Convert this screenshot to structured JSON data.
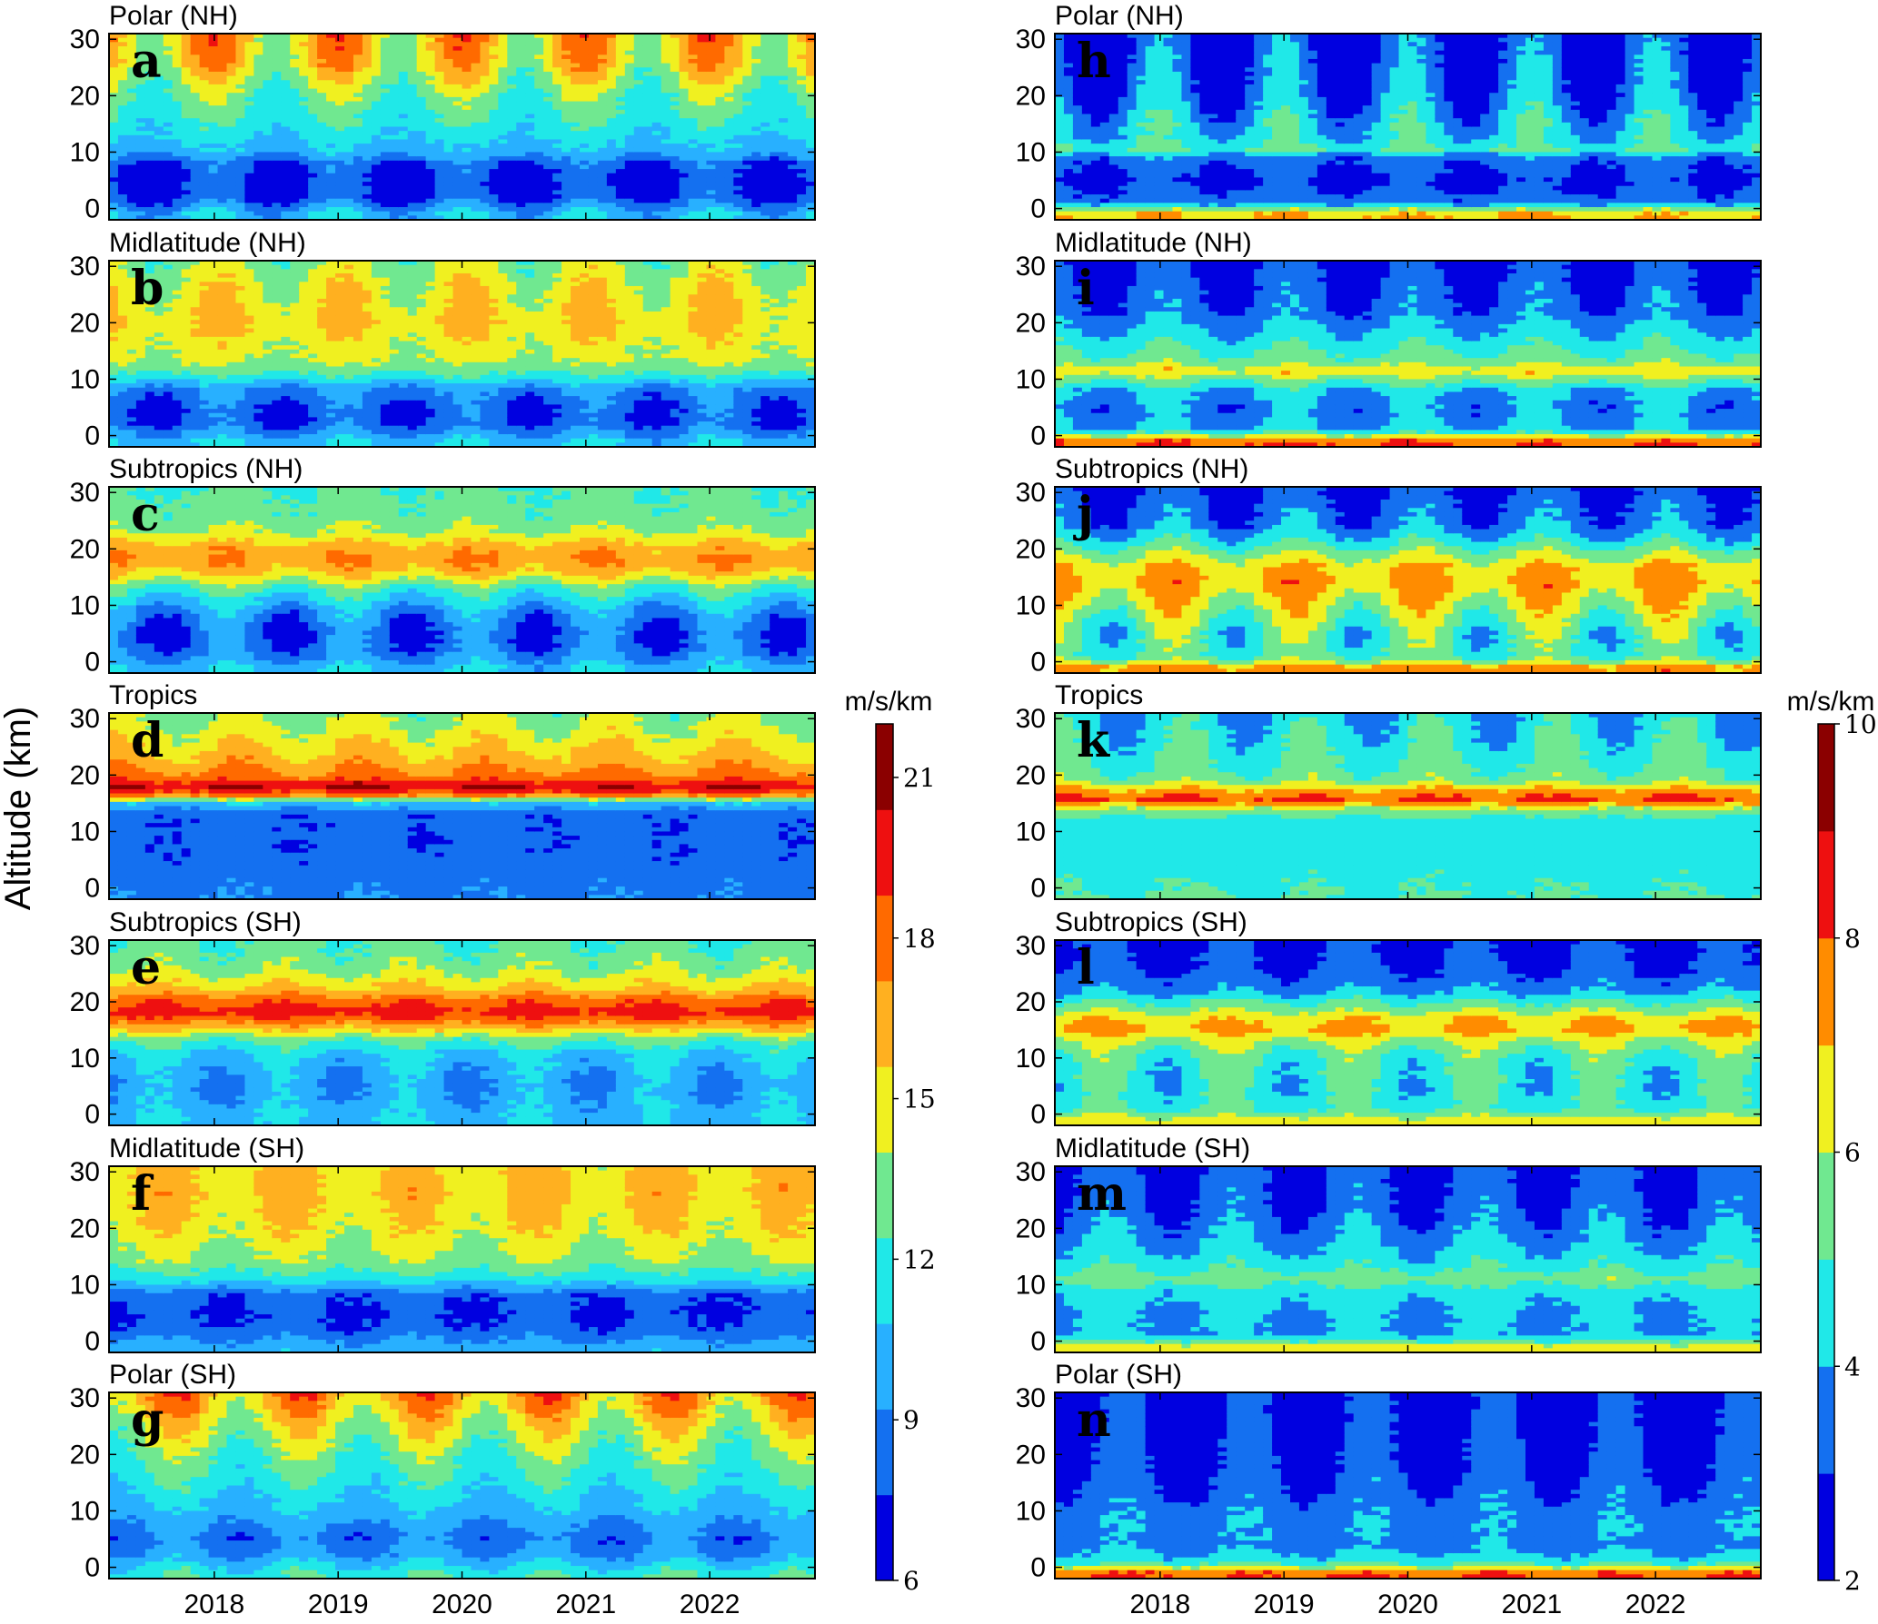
{
  "chart_data": {
    "type": "heatmap",
    "y_axis_label": "Altitude (km)",
    "x_ticks": [
      "2018",
      "2019",
      "2020",
      "2021",
      "2022"
    ],
    "x_tick_years": [
      2018,
      2019,
      2020,
      2021,
      2022
    ],
    "x_range": [
      2017.15,
      2022.85
    ],
    "y_ticks": [
      0,
      10,
      20,
      30
    ],
    "y_range": [
      -2,
      31
    ],
    "colorbars": [
      {
        "side": "left-column",
        "unit": "m/s/km",
        "range": [
          6,
          22
        ],
        "tick_values": [
          6,
          9,
          12,
          15,
          18,
          21
        ],
        "tick_labels": [
          "6",
          "9",
          "12",
          "15",
          "18",
          "21"
        ],
        "colors": [
          "#0000e0",
          "#1470f0",
          "#28b0ff",
          "#20e8e8",
          "#70e890",
          "#f0f020",
          "#ffb020",
          "#ff6a00",
          "#ee1010",
          "#8b0000"
        ]
      },
      {
        "side": "right-column",
        "unit": "m/s/km",
        "range": [
          2,
          10
        ],
        "tick_values": [
          2,
          4,
          6,
          8,
          10
        ],
        "tick_labels": [
          "2",
          "4",
          "6",
          "8",
          "10"
        ],
        "colors": [
          "#0000e0",
          "#1470f0",
          "#20e8e8",
          "#70e890",
          "#f0f020",
          "#ff8c00",
          "#ee1010",
          "#8b0000"
        ]
      }
    ],
    "panels": [
      {
        "letter": "a",
        "title": "Polar (NH)",
        "column": "left",
        "row": 0,
        "profile": [
          [
            -1,
            10.5
          ],
          [
            2,
            7.5
          ],
          [
            5,
            7.2
          ],
          [
            8,
            8
          ],
          [
            10,
            10.2
          ],
          [
            14,
            11.5
          ],
          [
            20,
            13
          ],
          [
            26,
            15.5
          ],
          [
            31,
            16.2
          ]
        ],
        "seasonal_amplitude": [
          [
            -1,
            1.5
          ],
          [
            5,
            1.5
          ],
          [
            9,
            1
          ],
          [
            11,
            0.4
          ],
          [
            18,
            1.2
          ],
          [
            25,
            2.5
          ],
          [
            31,
            3
          ]
        ],
        "seasonal_phase": 0
      },
      {
        "letter": "b",
        "title": "Midlatitude (NH)",
        "column": "left",
        "row": 1,
        "profile": [
          [
            -1,
            10.5
          ],
          [
            2,
            8
          ],
          [
            5,
            8
          ],
          [
            8,
            9
          ],
          [
            11,
            12.5
          ],
          [
            13,
            14
          ],
          [
            20,
            15.5
          ],
          [
            26,
            14.8
          ],
          [
            31,
            13.6
          ]
        ],
        "seasonal_amplitude": [
          [
            -1,
            1
          ],
          [
            5,
            1.3
          ],
          [
            9,
            0.8
          ],
          [
            12,
            0.3
          ],
          [
            18,
            1
          ],
          [
            25,
            1.5
          ],
          [
            31,
            1.5
          ]
        ],
        "seasonal_phase": 0.05
      },
      {
        "letter": "c",
        "title": "Subtropics (NH)",
        "column": "left",
        "row": 2,
        "profile": [
          [
            -1,
            10.5
          ],
          [
            2,
            8.5
          ],
          [
            5,
            8
          ],
          [
            9,
            9.5
          ],
          [
            13,
            12.5
          ],
          [
            16,
            16
          ],
          [
            18,
            17
          ],
          [
            20,
            16.5
          ],
          [
            23,
            14
          ],
          [
            26,
            13
          ],
          [
            31,
            12.5
          ]
        ],
        "seasonal_amplitude": [
          [
            -1,
            1
          ],
          [
            5,
            1.8
          ],
          [
            10,
            1.6
          ],
          [
            14,
            1
          ],
          [
            18,
            0.8
          ],
          [
            24,
            0.6
          ],
          [
            31,
            0.5
          ]
        ],
        "seasonal_phase": 0.1
      },
      {
        "letter": "d",
        "title": "Tropics",
        "column": "left",
        "row": 3,
        "profile": [
          [
            -1,
            9
          ],
          [
            5,
            8
          ],
          [
            13,
            8
          ],
          [
            15,
            10.5
          ],
          [
            16.5,
            18
          ],
          [
            18,
            20.5
          ],
          [
            19.5,
            18
          ],
          [
            22,
            16.5
          ],
          [
            26,
            15
          ],
          [
            31,
            13.5
          ]
        ],
        "seasonal_amplitude": [
          [
            -1,
            0.3
          ],
          [
            13,
            0.3
          ],
          [
            18,
            0.6
          ],
          [
            25,
            1
          ],
          [
            31,
            1.2
          ]
        ],
        "seasonal_phase": 0.2
      },
      {
        "letter": "e",
        "title": "Subtropics (SH)",
        "column": "left",
        "row": 4,
        "profile": [
          [
            -1,
            10.5
          ],
          [
            2,
            10
          ],
          [
            5,
            9.5
          ],
          [
            10,
            10.5
          ],
          [
            13,
            12.5
          ],
          [
            16,
            17
          ],
          [
            18,
            19.5
          ],
          [
            20,
            18.5
          ],
          [
            22,
            16
          ],
          [
            26,
            13.5
          ],
          [
            31,
            12.5
          ]
        ],
        "seasonal_amplitude": [
          [
            -1,
            0.8
          ],
          [
            5,
            1.3
          ],
          [
            10,
            1
          ],
          [
            14,
            0.6
          ],
          [
            18,
            0.5
          ],
          [
            25,
            0.8
          ],
          [
            31,
            0.8
          ]
        ],
        "seasonal_phase": 0.55
      },
      {
        "letter": "f",
        "title": "Midlatitude (SH)",
        "column": "left",
        "row": 5,
        "profile": [
          [
            -1,
            10
          ],
          [
            2,
            8
          ],
          [
            5,
            7.5
          ],
          [
            8,
            8
          ],
          [
            11,
            11.5
          ],
          [
            14,
            13.5
          ],
          [
            20,
            15
          ],
          [
            26,
            15.8
          ],
          [
            31,
            15.5
          ]
        ],
        "seasonal_amplitude": [
          [
            -1,
            0.5
          ],
          [
            5,
            0.6
          ],
          [
            11,
            0.4
          ],
          [
            18,
            1
          ],
          [
            26,
            1.2
          ],
          [
            31,
            1.3
          ]
        ],
        "seasonal_phase": 0.6
      },
      {
        "letter": "g",
        "title": "Polar (SH)",
        "column": "left",
        "row": 6,
        "profile": [
          [
            -1,
            12
          ],
          [
            2,
            9.5
          ],
          [
            5,
            8.5
          ],
          [
            9,
            10
          ],
          [
            14,
            11.5
          ],
          [
            20,
            13
          ],
          [
            26,
            15
          ],
          [
            31,
            17
          ]
        ],
        "seasonal_amplitude": [
          [
            -1,
            1
          ],
          [
            5,
            1
          ],
          [
            10,
            0.6
          ],
          [
            20,
            1.5
          ],
          [
            31,
            2.5
          ]
        ],
        "seasonal_phase": 0.7
      },
      {
        "letter": "h",
        "title": "Polar (NH)",
        "column": "right",
        "row": 0,
        "profile": [
          [
            -1,
            7
          ],
          [
            0,
            5.5
          ],
          [
            1,
            3.5
          ],
          [
            5,
            2.8
          ],
          [
            9,
            3.5
          ],
          [
            10.5,
            5.2
          ],
          [
            12,
            4.5
          ],
          [
            15,
            4.2
          ],
          [
            20,
            3.4
          ],
          [
            26,
            3
          ],
          [
            31,
            2.8
          ]
        ],
        "seasonal_amplitude": [
          [
            -1,
            0.3
          ],
          [
            5,
            0.4
          ],
          [
            11,
            0.5
          ],
          [
            15,
            1.2
          ],
          [
            22,
            1.4
          ],
          [
            31,
            1.3
          ]
        ],
        "seasonal_phase": 0
      },
      {
        "letter": "i",
        "title": "Midlatitude (NH)",
        "column": "right",
        "row": 1,
        "profile": [
          [
            -1,
            8
          ],
          [
            0,
            6
          ],
          [
            1,
            4
          ],
          [
            5,
            3.6
          ],
          [
            8,
            4.2
          ],
          [
            10,
            5.5
          ],
          [
            11.5,
            6.8
          ],
          [
            13,
            5.5
          ],
          [
            17,
            4.5
          ],
          [
            22,
            3.4
          ],
          [
            31,
            2.8
          ]
        ],
        "seasonal_amplitude": [
          [
            -1,
            0.3
          ],
          [
            5,
            0.7
          ],
          [
            9,
            0.5
          ],
          [
            12,
            0.4
          ],
          [
            20,
            0.6
          ],
          [
            26,
            0.8
          ],
          [
            31,
            0.8
          ]
        ],
        "seasonal_phase": 0.05
      },
      {
        "letter": "j",
        "title": "Subtropics (NH)",
        "column": "right",
        "row": 2,
        "profile": [
          [
            -1,
            7.5
          ],
          [
            0,
            6
          ],
          [
            1,
            5
          ],
          [
            5,
            5
          ],
          [
            10,
            6.2
          ],
          [
            14,
            7.2
          ],
          [
            17,
            6.8
          ],
          [
            21,
            4.8
          ],
          [
            24,
            3.6
          ],
          [
            31,
            2.9
          ]
        ],
        "seasonal_amplitude": [
          [
            -1,
            0.4
          ],
          [
            5,
            1.4
          ],
          [
            10,
            1.2
          ],
          [
            14,
            0.8
          ],
          [
            18,
            0.6
          ],
          [
            24,
            0.8
          ],
          [
            31,
            0.6
          ]
        ],
        "seasonal_phase": 0.1
      },
      {
        "letter": "k",
        "title": "Tropics",
        "column": "right",
        "row": 3,
        "profile": [
          [
            -1,
            5
          ],
          [
            5,
            4.5
          ],
          [
            12,
            4.6
          ],
          [
            14,
            6
          ],
          [
            15.5,
            8.2
          ],
          [
            17,
            7.5
          ],
          [
            19,
            5.5
          ],
          [
            22,
            5
          ],
          [
            26,
            4.6
          ],
          [
            31,
            4.2
          ]
        ],
        "seasonal_amplitude": [
          [
            -1,
            0.2
          ],
          [
            12,
            0.2
          ],
          [
            18,
            0.4
          ],
          [
            24,
            0.8
          ],
          [
            31,
            0.9
          ]
        ],
        "seasonal_phase": 0.2
      },
      {
        "letter": "l",
        "title": "Subtropics (SH)",
        "column": "right",
        "row": 4,
        "profile": [
          [
            -1,
            6.5
          ],
          [
            0,
            5.5
          ],
          [
            1,
            4.8
          ],
          [
            5,
            4.6
          ],
          [
            10,
            5
          ],
          [
            13,
            6
          ],
          [
            15,
            7.2
          ],
          [
            17,
            6.8
          ],
          [
            19,
            5.5
          ],
          [
            22,
            3.8
          ],
          [
            26,
            3
          ],
          [
            31,
            2.8
          ]
        ],
        "seasonal_amplitude": [
          [
            -1,
            0.3
          ],
          [
            5,
            0.9
          ],
          [
            10,
            0.9
          ],
          [
            14,
            0.5
          ],
          [
            20,
            0.4
          ],
          [
            26,
            0.5
          ],
          [
            31,
            0.5
          ]
        ],
        "seasonal_phase": 0.55
      },
      {
        "letter": "m",
        "title": "Midlatitude  (SH)",
        "column": "right",
        "row": 5,
        "profile": [
          [
            -1,
            6.5
          ],
          [
            0,
            5
          ],
          [
            1,
            4
          ],
          [
            5,
            4
          ],
          [
            9,
            4.5
          ],
          [
            11,
            5.6
          ],
          [
            13,
            4.8
          ],
          [
            18,
            3.8
          ],
          [
            24,
            3.2
          ],
          [
            31,
            2.9
          ]
        ],
        "seasonal_amplitude": [
          [
            -1,
            0.2
          ],
          [
            5,
            0.4
          ],
          [
            11,
            0.3
          ],
          [
            18,
            0.7
          ],
          [
            26,
            0.8
          ],
          [
            31,
            0.8
          ]
        ],
        "seasonal_phase": 0.6
      },
      {
        "letter": "n",
        "title": "Polar (SH)",
        "column": "right",
        "row": 6,
        "profile": [
          [
            -1,
            8
          ],
          [
            0,
            6
          ],
          [
            1,
            4.5
          ],
          [
            4,
            3.6
          ],
          [
            8,
            3.8
          ],
          [
            12,
            3.4
          ],
          [
            18,
            2.9
          ],
          [
            25,
            2.6
          ],
          [
            31,
            2.4
          ]
        ],
        "seasonal_amplitude": [
          [
            -1,
            0.3
          ],
          [
            5,
            0.4
          ],
          [
            10,
            0.4
          ],
          [
            16,
            0.8
          ],
          [
            24,
            1
          ],
          [
            31,
            1.1
          ]
        ],
        "seasonal_phase": 0.7
      }
    ]
  }
}
